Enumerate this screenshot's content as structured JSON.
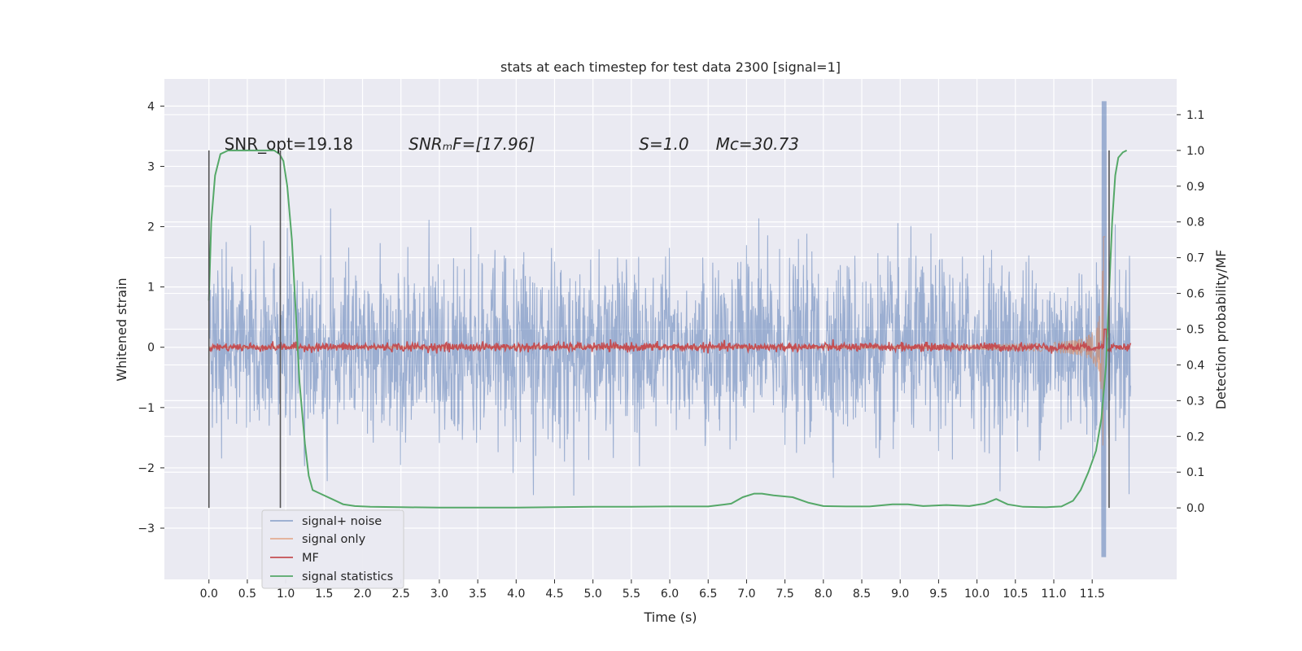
{
  "chart_data": {
    "type": "line",
    "title": "stats at each timestep for test data 2300 [signal=1]",
    "xlabel": "Time (s)",
    "ylabel": "Whitened strain",
    "ylabel_right": "Detection probability/MF",
    "xlim": [
      -0.58,
      12.6
    ],
    "ylim": [
      -3.85,
      4.45
    ],
    "ylim_right": [
      -0.2,
      1.2
    ],
    "x_ticks": [
      0.0,
      0.5,
      1.0,
      1.5,
      2.0,
      2.5,
      3.0,
      3.5,
      4.0,
      4.5,
      5.0,
      5.5,
      6.0,
      6.5,
      7.0,
      7.5,
      8.0,
      8.5,
      9.0,
      9.5,
      10.0,
      10.5,
      11.0,
      11.5
    ],
    "x_tick_labels": [
      "0.0",
      "0.5",
      "1.0",
      "1.5",
      "2.0",
      "2.5",
      "3.0",
      "3.5",
      "4.0",
      "4.5",
      "5.0",
      "5.5",
      "6.0",
      "6.5",
      "7.0",
      "7.5",
      "8.0",
      "8.5",
      "9.0",
      "9.5",
      "10.0",
      "10.5",
      "11.0",
      "11.5"
    ],
    "y_ticks": [
      -3,
      -2,
      -1,
      0,
      1,
      2,
      3,
      4
    ],
    "y_tick_labels": [
      "−3",
      "−2",
      "−1",
      "0",
      "1",
      "2",
      "3",
      "4"
    ],
    "y_right_ticks": [
      0.0,
      0.1,
      0.2,
      0.3,
      0.4,
      0.5,
      0.6,
      0.7,
      0.8,
      0.9,
      1.0,
      1.1
    ],
    "y_right_tick_labels": [
      "0.0",
      "0.1",
      "0.2",
      "0.3",
      "0.4",
      "0.5",
      "0.6",
      "0.7",
      "0.8",
      "0.9",
      "1.0",
      "1.1"
    ],
    "grid": true,
    "legend_position": "lower-left",
    "annotations": [
      {
        "text": "SNR_opt=19.18",
        "x": 0.2,
        "y_right": 1.0
      },
      {
        "text": "SNRₘF=[17.96]",
        "x": 2.6,
        "y_right": 1.0
      },
      {
        "text": "S=1.0",
        "x": 5.6,
        "y_right": 1.0
      },
      {
        "text": "Mᴄ=30.73",
        "x": 6.6,
        "y_right": 1.0
      }
    ],
    "vertical_markers": [
      {
        "x": 0.0,
        "y_right_range": [
          0.0,
          1.0
        ]
      },
      {
        "x": 0.93,
        "y_right_range": [
          0.0,
          1.0
        ]
      },
      {
        "x": 11.72,
        "y_right_range": [
          0.0,
          1.0
        ]
      }
    ],
    "series": [
      {
        "name": "signal+ noise",
        "color": "#4c72b0",
        "axis": "left",
        "description_samples": {
          "x_range": [
            0.0,
            12.0
          ],
          "typical_band": [
            -1.5,
            1.5
          ],
          "max": 4.08,
          "min": -3.48,
          "max_at": 11.65,
          "min_at": 11.65
        }
      },
      {
        "name": "signal only",
        "color": "#dd8452",
        "axis": "left",
        "description_samples": {
          "x_range": [
            0.0,
            11.67
          ],
          "max": 3.1,
          "min": -3.1,
          "peak_at": 11.65
        }
      },
      {
        "name": "MF",
        "color": "#c44e52",
        "axis": "right",
        "description_samples": {
          "x_range": [
            0.0,
            12.0
          ],
          "typical_level": 0.45,
          "band": [
            0.44,
            0.47
          ],
          "peak": 0.5,
          "peak_at": 11.67
        }
      },
      {
        "name": "signal statistics",
        "color": "#55a868",
        "axis": "right",
        "x": [
          0.0,
          0.03,
          0.08,
          0.15,
          0.25,
          0.4,
          0.55,
          0.7,
          0.85,
          0.92,
          0.97,
          1.02,
          1.08,
          1.13,
          1.18,
          1.25,
          1.3,
          1.35,
          1.45,
          1.6,
          1.75,
          1.9,
          2.1,
          2.5,
          3.0,
          3.5,
          4.0,
          4.5,
          5.0,
          5.5,
          6.0,
          6.5,
          6.8,
          6.95,
          7.1,
          7.2,
          7.35,
          7.6,
          7.8,
          8.0,
          8.3,
          8.6,
          8.9,
          9.1,
          9.3,
          9.6,
          9.9,
          10.1,
          10.25,
          10.4,
          10.6,
          10.9,
          11.1,
          11.25,
          11.35,
          11.45,
          11.55,
          11.62,
          11.68,
          11.72,
          11.76,
          11.8,
          11.84,
          11.9,
          11.95
        ],
        "values": [
          0.58,
          0.8,
          0.93,
          0.99,
          1.0,
          1.0,
          1.0,
          1.0,
          1.0,
          0.99,
          0.97,
          0.9,
          0.75,
          0.55,
          0.35,
          0.18,
          0.09,
          0.05,
          0.04,
          0.025,
          0.01,
          0.005,
          0.003,
          0.002,
          0.001,
          0.001,
          0.001,
          0.002,
          0.003,
          0.003,
          0.004,
          0.004,
          0.012,
          0.03,
          0.04,
          0.04,
          0.035,
          0.03,
          0.015,
          0.005,
          0.004,
          0.004,
          0.01,
          0.01,
          0.005,
          0.008,
          0.005,
          0.012,
          0.025,
          0.01,
          0.003,
          0.002,
          0.004,
          0.02,
          0.05,
          0.1,
          0.16,
          0.25,
          0.4,
          0.6,
          0.8,
          0.93,
          0.98,
          0.995,
          1.0
        ]
      }
    ]
  }
}
